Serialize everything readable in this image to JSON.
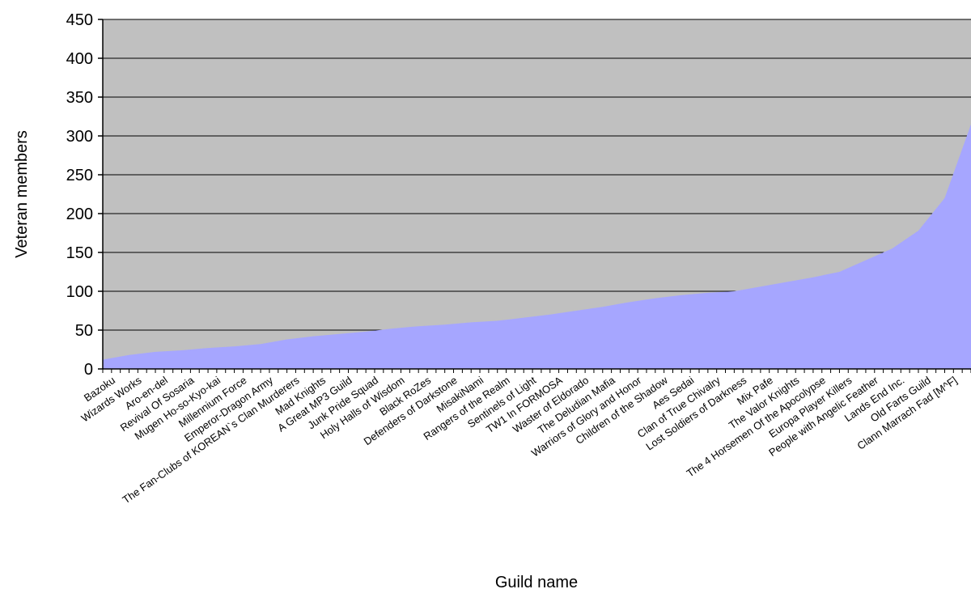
{
  "chart_data": {
    "type": "area",
    "title": "",
    "xlabel": "Guild name",
    "ylabel": "Veteran members",
    "ylim": [
      0,
      450
    ],
    "yticks": [
      0,
      50,
      100,
      150,
      200,
      250,
      300,
      350,
      400,
      450
    ],
    "grid": true,
    "legend": "none",
    "colors": {
      "plot_bg": "#c0c0c0",
      "area_fill": "#a6a6ff",
      "gridline": "#000000"
    },
    "x_labels": [
      "Bazoku",
      "Wizards Works",
      "Aro-en-del",
      "Revival Of Sosaria",
      "Mugen Ho-so-Kyo-kai",
      "Millennium Force",
      "Emperor-Dragon Army",
      "The Fan-Clubs of KOREAN`s Clan Murderers",
      "Mad Knights",
      "A Great MP3 Guild",
      "Junk Pride Squad",
      "Holy Halls of Wisdom",
      "Black RoZes",
      "Defenders of Darkstone",
      "MisakiNami",
      "Rangers of the Realm",
      "Sentinels of Light",
      "TW1 In FORMOSA",
      "Waster of Eldorado",
      "The Deludian Mafia",
      "Warriors of Glory and Honor",
      "Children of the Shadow",
      "Aes Sedai",
      "Clan of True Chivalry",
      "Lost Soldiers of Darkness",
      "Mix Pafe",
      "The Valor Knights",
      "The 4 Horsemen Of the Apocolypse",
      "Europa Player Killers",
      "People with Angelic Feather",
      "Lands End Inc.",
      "Old Farts Guild",
      "Clann Marrach Fad [M^F]"
    ],
    "label_x": [
      0.5,
      1.5,
      2.5,
      3.5,
      4.5,
      5.5,
      6.5,
      7.5,
      8.5,
      9.5,
      10.5,
      11.5,
      12.5,
      13.5,
      14.5,
      15.5,
      16.5,
      17.5,
      18.5,
      19.5,
      20.5,
      21.5,
      22.5,
      23.5,
      24.5,
      25.5,
      26.5,
      27.5,
      28.5,
      29.5,
      30.5,
      31.5,
      32.5
    ],
    "x": [
      0,
      1,
      2,
      3,
      4,
      5,
      6,
      7,
      8,
      9,
      10,
      11,
      12,
      13,
      14,
      15,
      16,
      17,
      18,
      19,
      20,
      21,
      22,
      23,
      24,
      25,
      26,
      27,
      28,
      29,
      30,
      31,
      32,
      33
    ],
    "values": [
      12,
      18,
      22,
      24,
      27,
      29,
      32,
      38,
      42,
      45,
      48,
      52,
      55,
      57,
      60,
      62,
      66,
      70,
      75,
      80,
      86,
      91,
      95,
      98,
      100,
      106,
      112,
      118,
      125,
      140,
      155,
      178,
      220,
      315
    ],
    "xlim": [
      0,
      33
    ]
  }
}
